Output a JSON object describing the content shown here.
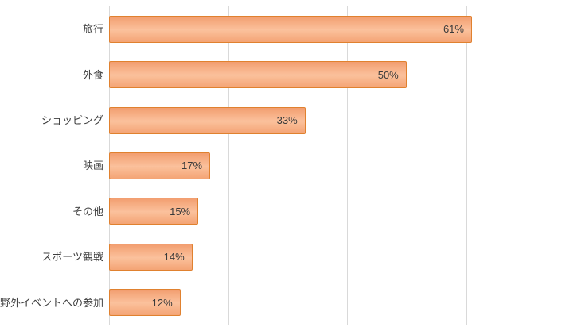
{
  "chart_data": {
    "type": "bar",
    "orientation": "horizontal",
    "title": "",
    "xlabel": "",
    "ylabel": "",
    "categories": [
      "旅行",
      "外食",
      "ショッピング",
      "映画",
      "その他",
      "スポーツ観戦",
      "野外イベントへの参加"
    ],
    "values": [
      61,
      50,
      33,
      17,
      15,
      14,
      12
    ],
    "value_labels": [
      "61%",
      "50%",
      "33%",
      "17%",
      "15%",
      "14%",
      "12%"
    ],
    "xlim": [
      0,
      80
    ],
    "gridline_interval": 20,
    "grid": true,
    "legend": false,
    "colors": {
      "bar_fill_top": "#f29e70",
      "bar_fill_mid": "#fbc19c",
      "bar_fill_bottom": "#f4a475",
      "bar_border": "#e0812f",
      "gridline": "#d9d9d9",
      "label_text": "#404040",
      "background": "#ffffff"
    }
  }
}
